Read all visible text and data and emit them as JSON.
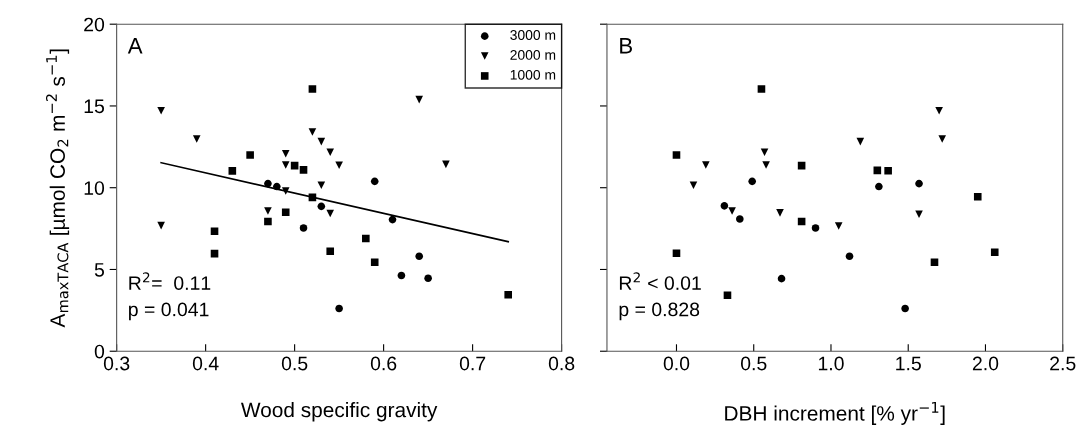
{
  "chart_data": [
    {
      "type": "scatter",
      "xlabel": "Wood specific gravity",
      "ylabel": "A$_{maxTACA}$ [µmol CO$_{2}$ m$^{−2}$ s$^{−1}$]",
      "xlim": [
        0.3,
        0.8
      ],
      "xticks": [
        {
          "value": 0.3,
          "label": "0.3"
        },
        {
          "value": 0.4,
          "label": "0.4"
        },
        {
          "value": 0.5,
          "label": "0.5"
        },
        {
          "value": 0.6,
          "label": "0.6"
        },
        {
          "value": 0.7,
          "label": "0.7"
        },
        {
          "value": 0.8,
          "label": "0.8"
        }
      ],
      "ylim": [
        0,
        20
      ],
      "yticks": [
        0,
        5,
        10,
        15,
        20
      ],
      "grid": false,
      "legend": "top right",
      "annotations": [
        "A",
        "R$^{2}$=  0.11",
        "p = 0.041"
      ],
      "series": [
        {
          "name": "3000 m",
          "color": "#000000",
          "marker": "circle",
          "x": [
            0.47,
            0.48,
            0.59,
            0.53,
            0.51,
            0.61,
            0.64,
            0.62,
            0.65,
            0.55
          ],
          "values": [
            10.25,
            10.07,
            10.39,
            8.86,
            7.54,
            8.05,
            5.81,
            4.63,
            4.46,
            2.61
          ]
        },
        {
          "name": "2000 m",
          "color": "#000000",
          "marker": "triangle",
          "x": [
            0.35,
            0.39,
            0.35,
            0.52,
            0.53,
            0.54,
            0.55,
            0.49,
            0.49,
            0.53,
            0.49,
            0.47,
            0.54,
            0.64,
            0.67
          ],
          "values": [
            14.71,
            12.98,
            7.68,
            13.41,
            12.82,
            12.17,
            11.37,
            12.08,
            11.39,
            10.15,
            9.8,
            8.58,
            8.42,
            15.39,
            11.43
          ]
        },
        {
          "name": "1000 m",
          "color": "#000000",
          "marker": "square",
          "x": [
            0.52,
            0.45,
            0.43,
            0.5,
            0.51,
            0.52,
            0.49,
            0.47,
            0.41,
            0.41,
            0.54,
            0.58,
            0.59,
            0.74
          ],
          "values": [
            16.04,
            12.0,
            11.03,
            11.35,
            11.09,
            9.41,
            8.5,
            7.93,
            7.34,
            5.97,
            6.11,
            6.89,
            5.44,
            3.45
          ]
        },
        {
          "type": "line",
          "color": "#000000",
          "marker": "none",
          "line_style": "solid",
          "x": [
            0.35,
            0.74
          ],
          "values": [
            11.53,
            6.7
          ]
        }
      ]
    },
    {
      "type": "scatter",
      "xlabel": "DBH increment [% yr$^{−1}$]",
      "xlim": [
        -0.45,
        2.5
      ],
      "xticks": [
        {
          "value": 0.0,
          "label": "0.0"
        },
        {
          "value": 0.5,
          "label": "0.5"
        },
        {
          "value": 1.0,
          "label": "1.0"
        },
        {
          "value": 1.5,
          "label": "1.5"
        },
        {
          "value": 2.0,
          "label": "2.0"
        },
        {
          "value": 2.5,
          "label": "2.5"
        }
      ],
      "ylim": [
        0,
        20
      ],
      "yticks": [
        0,
        5,
        10,
        15,
        20
      ],
      "tick_labels": "x",
      "grid": false,
      "annotations": [
        "B",
        "R$^{2}$ < 0.01",
        "p = 0.828"
      ],
      "series": [
        {
          "color": "#000000",
          "marker": "circle",
          "x": [
            0.31,
            0.41,
            0.49,
            0.9,
            0.68,
            1.12,
            1.31,
            1.57,
            1.48
          ],
          "values": [
            8.89,
            8.09,
            10.39,
            7.54,
            4.44,
            5.81,
            10.07,
            10.25,
            2.61
          ]
        },
        {
          "color": "#000000",
          "marker": "triangle",
          "x": [
            0.11,
            0.19,
            0.36,
            0.57,
            0.58,
            0.67,
            1.05,
            1.19,
            1.7,
            1.72,
            1.57
          ],
          "values": [
            10.15,
            11.39,
            8.58,
            12.17,
            11.39,
            8.46,
            7.66,
            12.82,
            14.71,
            12.98,
            8.38
          ]
        },
        {
          "color": "#000000",
          "marker": "square",
          "x": [
            0.0,
            0.55,
            0.81,
            1.3,
            1.37,
            0.81,
            0.0,
            0.33,
            1.67,
            1.95,
            2.06
          ],
          "values": [
            12.0,
            16.04,
            11.35,
            11.06,
            11.04,
            7.93,
            5.99,
            3.42,
            5.44,
            9.45,
            6.05
          ]
        }
      ]
    }
  ]
}
